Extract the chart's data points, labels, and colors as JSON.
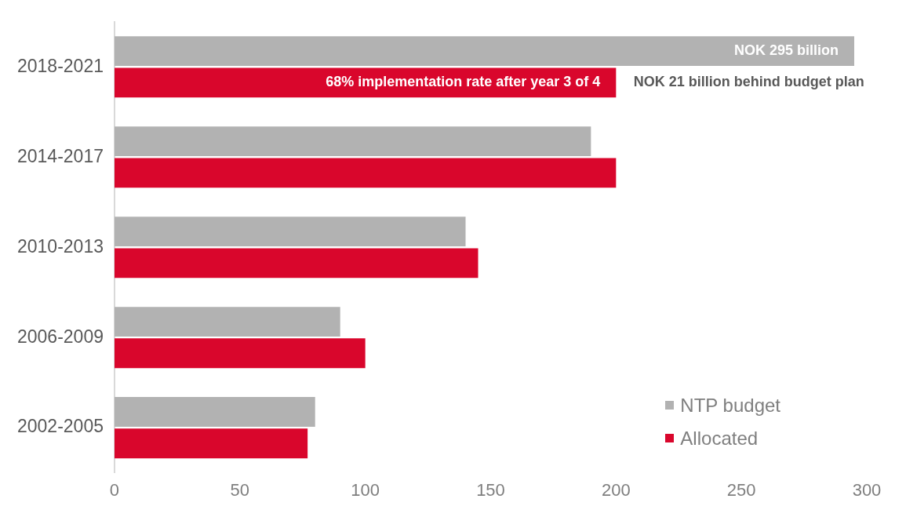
{
  "chart_data": {
    "type": "bar",
    "orientation": "horizontal",
    "categories": [
      "2018-2021",
      "2014-2017",
      "2010-2013",
      "2006-2009",
      "2002-2005"
    ],
    "series": [
      {
        "name": "NTP budget",
        "color": "#b2b2b2",
        "values": [
          295,
          190,
          140,
          90,
          80
        ]
      },
      {
        "name": "Allocated",
        "color": "#d9062c",
        "values": [
          200,
          200,
          145,
          100,
          77
        ]
      }
    ],
    "xlim": [
      0,
      300
    ],
    "xticks": [
      0,
      50,
      100,
      150,
      200,
      250,
      300
    ],
    "grid": false,
    "legend": "bottom right",
    "annotations": [
      {
        "text": "NOK 295 billion",
        "x": 295,
        "y": "2018-2021"
      },
      {
        "text": "68% implementation rate after year 3 of 4",
        "x": 200,
        "y": "2018-2021"
      },
      {
        "text": "NOK 21 billion behind budget plan",
        "x": 207,
        "y": "2018-2021"
      }
    ]
  }
}
